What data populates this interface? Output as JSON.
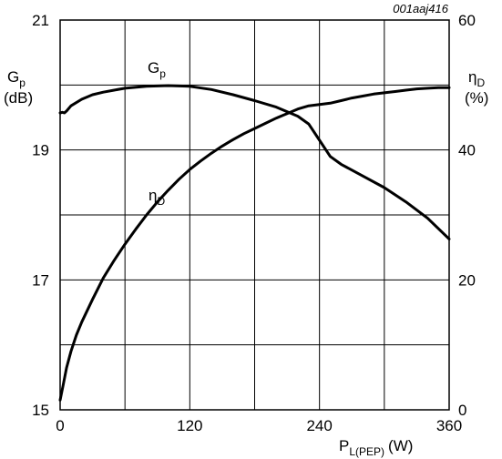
{
  "figure_ref": "001aaj416",
  "chart_data": {
    "type": "line",
    "x_ticks": [
      0,
      120,
      240,
      360
    ],
    "xlim": [
      0,
      360
    ],
    "x_label": {
      "main": "P",
      "sub": "L(PEP)",
      "unit": "(W)"
    },
    "y_left": {
      "ticks": [
        15,
        17,
        19,
        21
      ],
      "lim": [
        15,
        21
      ],
      "label_main": "G",
      "label_sub": "p",
      "unit": "(dB)"
    },
    "y_right": {
      "ticks": [
        0,
        20,
        40,
        60
      ],
      "lim": [
        0,
        60
      ],
      "label_main": "η",
      "label_sub": "D",
      "unit": "(%)"
    },
    "grid": true,
    "series": [
      {
        "name_main": "G",
        "name_sub": "p",
        "axis": "left",
        "points": [
          [
            0,
            19.57
          ],
          [
            2,
            19.58
          ],
          [
            4,
            19.57
          ],
          [
            6,
            19.6
          ],
          [
            10,
            19.68
          ],
          [
            20,
            19.78
          ],
          [
            30,
            19.85
          ],
          [
            40,
            19.89
          ],
          [
            50,
            19.92
          ],
          [
            60,
            19.95
          ],
          [
            80,
            19.98
          ],
          [
            100,
            19.99
          ],
          [
            120,
            19.98
          ],
          [
            140,
            19.93
          ],
          [
            160,
            19.85
          ],
          [
            180,
            19.76
          ],
          [
            200,
            19.66
          ],
          [
            220,
            19.52
          ],
          [
            230,
            19.4
          ],
          [
            240,
            19.15
          ],
          [
            250,
            18.9
          ],
          [
            260,
            18.78
          ],
          [
            280,
            18.6
          ],
          [
            300,
            18.42
          ],
          [
            320,
            18.2
          ],
          [
            340,
            17.95
          ],
          [
            360,
            17.63
          ]
        ]
      },
      {
        "name_main": "η",
        "name_sub": "D",
        "axis": "right",
        "points": [
          [
            0,
            1.5
          ],
          [
            3,
            4
          ],
          [
            6,
            6.5
          ],
          [
            10,
            9
          ],
          [
            15,
            11.5
          ],
          [
            20,
            13.5
          ],
          [
            30,
            17
          ],
          [
            40,
            20.3
          ],
          [
            50,
            23
          ],
          [
            60,
            25.5
          ],
          [
            70,
            27.8
          ],
          [
            80,
            30
          ],
          [
            90,
            32
          ],
          [
            100,
            33.8
          ],
          [
            110,
            35.5
          ],
          [
            120,
            37
          ],
          [
            130,
            38.3
          ],
          [
            140,
            39.5
          ],
          [
            150,
            40.6
          ],
          [
            160,
            41.6
          ],
          [
            170,
            42.5
          ],
          [
            180,
            43.3
          ],
          [
            190,
            44.1
          ],
          [
            200,
            44.9
          ],
          [
            210,
            45.6
          ],
          [
            220,
            46.3
          ],
          [
            230,
            46.8
          ],
          [
            240,
            47
          ],
          [
            250,
            47.2
          ],
          [
            260,
            47.6
          ],
          [
            270,
            48
          ],
          [
            280,
            48.3
          ],
          [
            290,
            48.6
          ],
          [
            300,
            48.8
          ],
          [
            310,
            49
          ],
          [
            320,
            49.2
          ],
          [
            330,
            49.4
          ],
          [
            340,
            49.5
          ],
          [
            350,
            49.6
          ],
          [
            360,
            49.6
          ]
        ]
      }
    ]
  }
}
